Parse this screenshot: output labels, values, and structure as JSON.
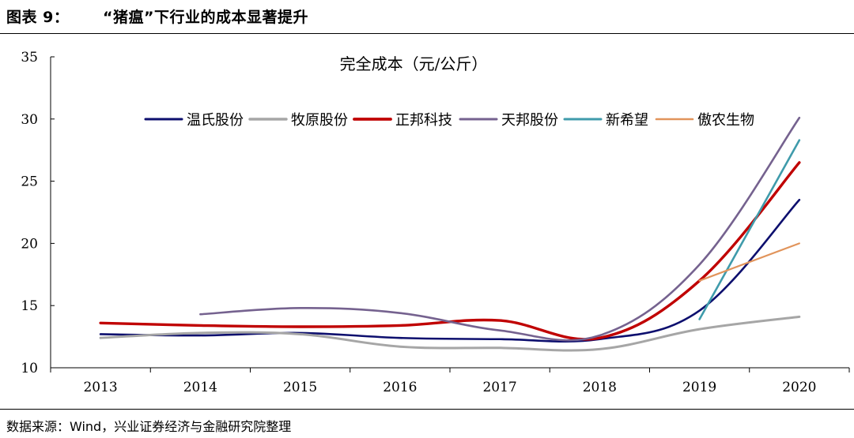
{
  "header": {
    "figure_label": "图表 9：",
    "title": "“猪瘟”下行业的成本显著提升"
  },
  "footer": {
    "source": "数据来源：Wind，兴业证券经济与金融研究院整理"
  },
  "chart_data": {
    "type": "line",
    "title": "完全成本（元/公斤）",
    "categories": [
      "2013",
      "2014",
      "2015",
      "2016",
      "2017",
      "2018",
      "2019",
      "2020"
    ],
    "ylim": [
      10,
      35
    ],
    "yticks": [
      10,
      15,
      20,
      25,
      30,
      35
    ],
    "legend_position": "top",
    "series": [
      {
        "name": "温氏股份",
        "color": "#0d0f6e",
        "width": 2.6,
        "values": [
          12.7,
          12.6,
          12.8,
          12.4,
          12.3,
          12.3,
          14.6,
          23.5
        ]
      },
      {
        "name": "牧原股份",
        "color": "#a6a6a6",
        "width": 3.0,
        "values": [
          12.4,
          12.8,
          12.7,
          11.7,
          11.6,
          11.5,
          13.1,
          14.1
        ]
      },
      {
        "name": "正邦科技",
        "color": "#c00000",
        "width": 3.4,
        "values": [
          13.6,
          13.4,
          13.3,
          13.4,
          13.8,
          12.4,
          17.0,
          26.5
        ]
      },
      {
        "name": "天邦股份",
        "color": "#75628f",
        "width": 2.6,
        "values": [
          null,
          14.3,
          14.8,
          14.4,
          13.0,
          12.6,
          18.3,
          30.1
        ]
      },
      {
        "name": "新希望",
        "color": "#3f9bab",
        "width": 2.6,
        "values": [
          null,
          null,
          null,
          null,
          null,
          null,
          13.9,
          28.3
        ]
      },
      {
        "name": "傲农生物",
        "color": "#e1945b",
        "width": 2.2,
        "values": [
          null,
          null,
          null,
          null,
          null,
          null,
          17.0,
          20.0
        ]
      }
    ]
  }
}
